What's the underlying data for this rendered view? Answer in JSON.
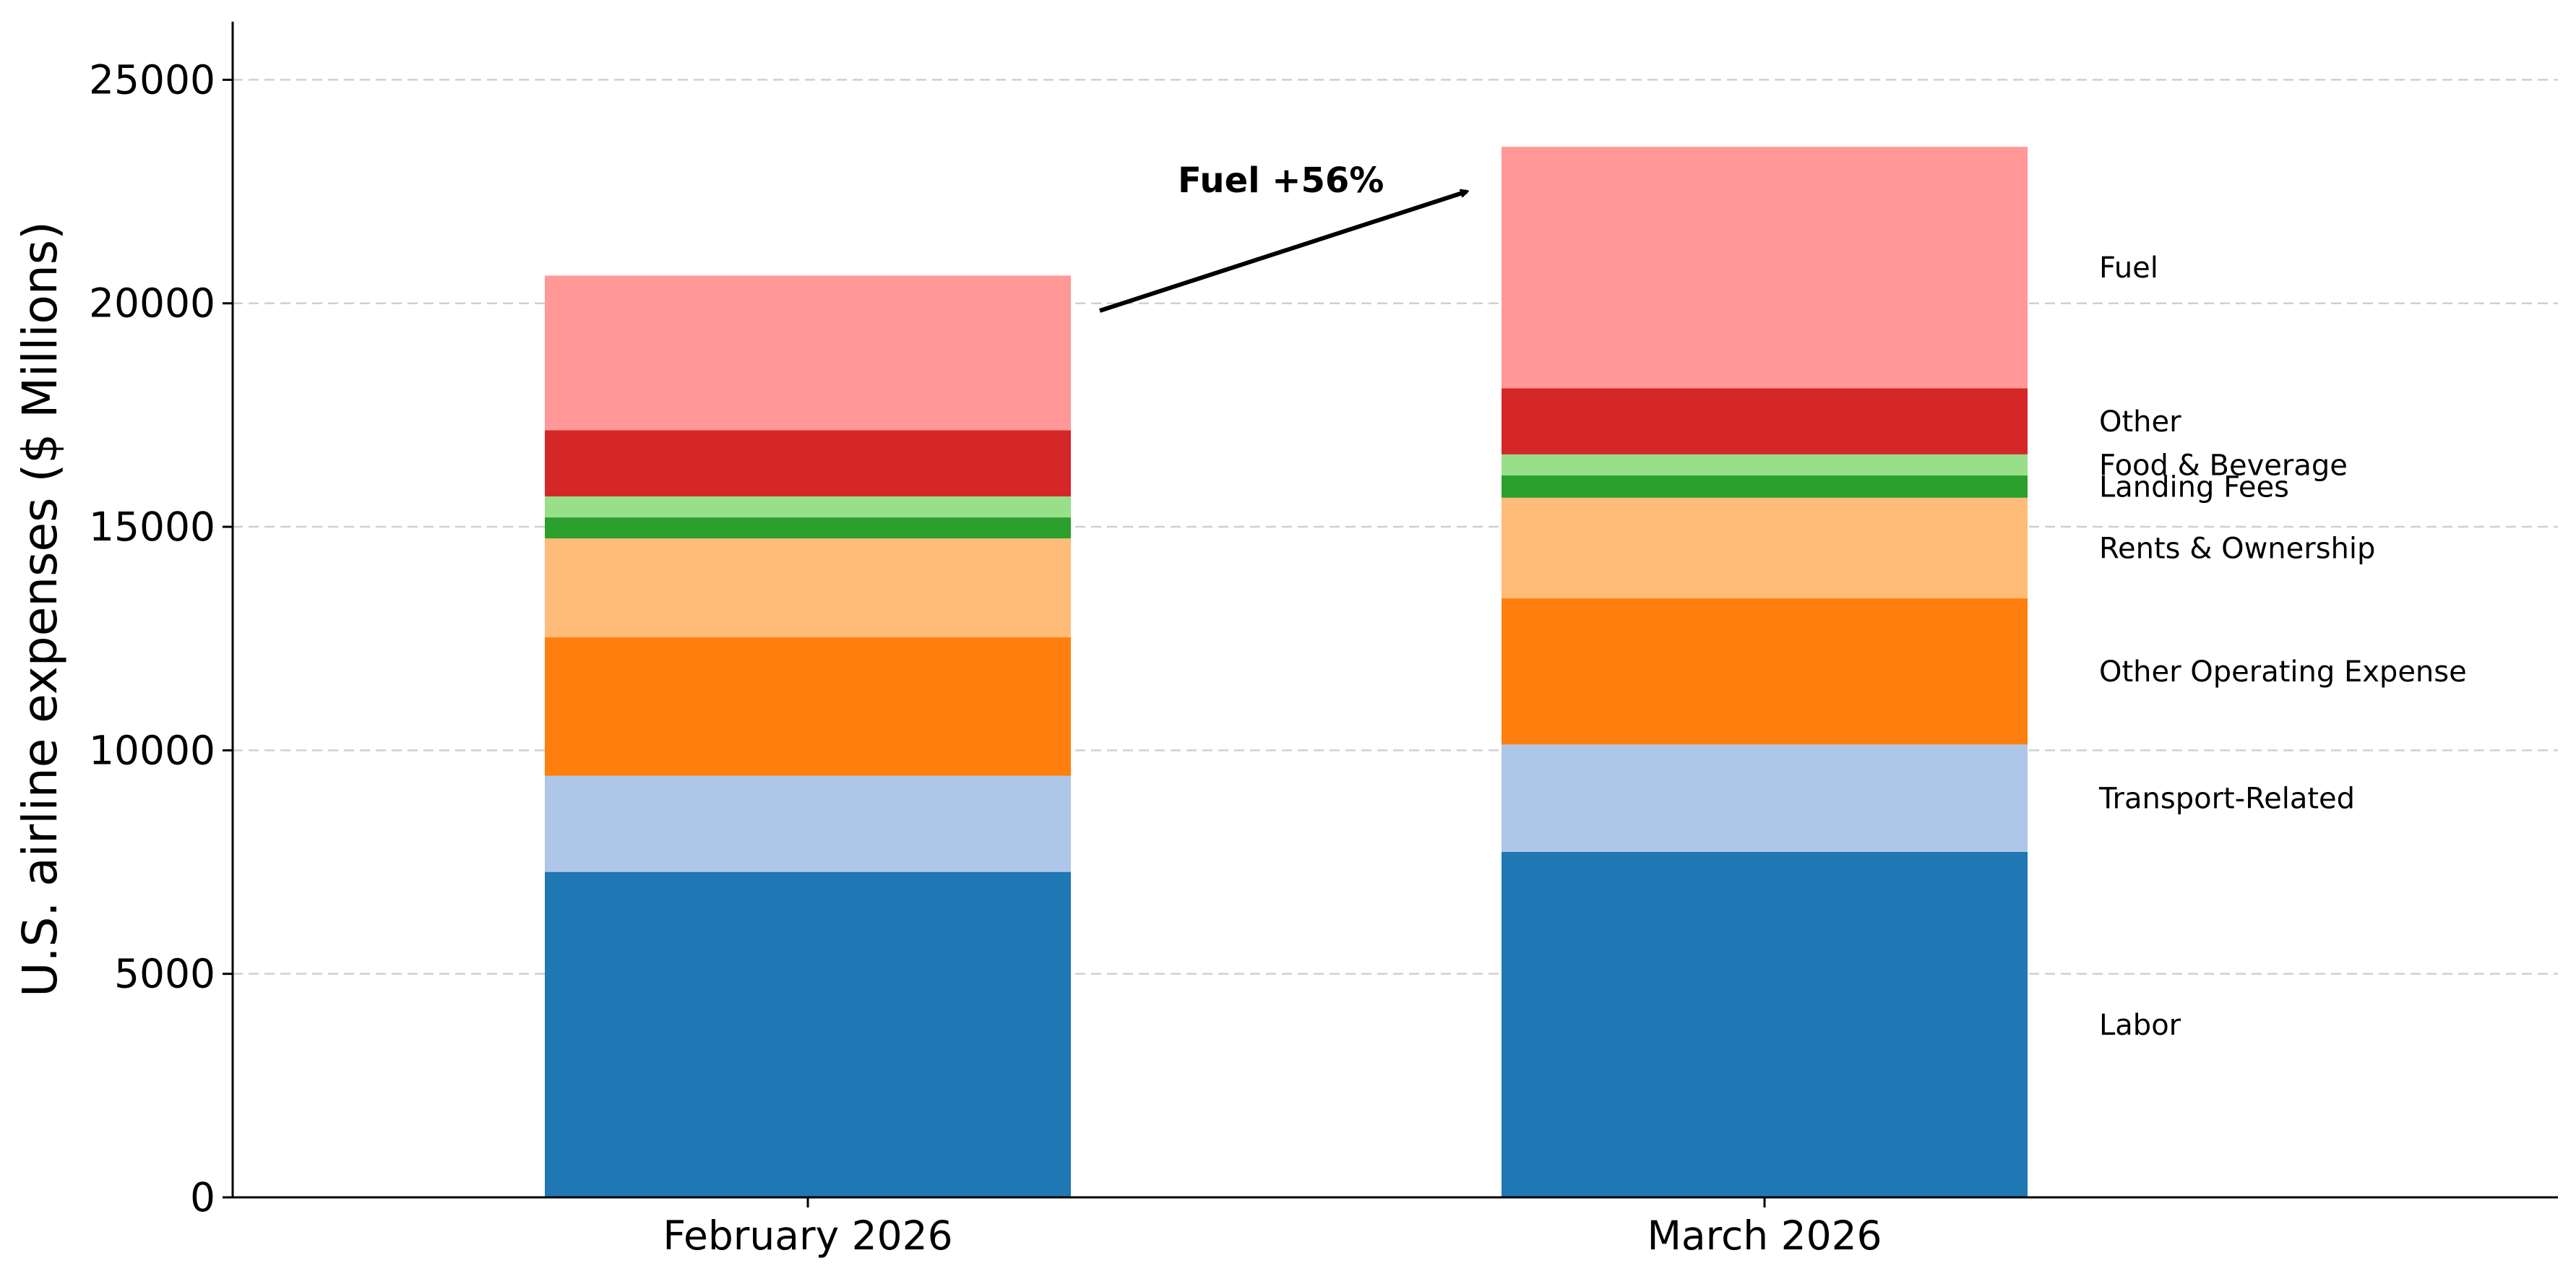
{
  "chart_data": {
    "type": "bar",
    "stacked": true,
    "title": "",
    "xlabel": "",
    "ylabel": "U.S. airline expenses ($ Millions)",
    "ylim": [
      0,
      26300
    ],
    "yticks": [
      0,
      5000,
      10000,
      15000,
      20000,
      25000
    ],
    "grid": "horizontal dashed",
    "categories": [
      "February 2026",
      "March 2026"
    ],
    "series": [
      {
        "name": "Labor",
        "color": "#1f77b4",
        "values": [
          7280,
          7730
        ]
      },
      {
        "name": "Transport-Related",
        "color": "#aec7e8",
        "values": [
          2150,
          2400
        ]
      },
      {
        "name": "Other Operating Expense",
        "color": "#ff7f0e",
        "values": [
          3100,
          3270
        ]
      },
      {
        "name": "Rents & Ownership",
        "color": "#ffbb78",
        "values": [
          2210,
          2250
        ]
      },
      {
        "name": "Landing Fees",
        "color": "#2ca02c",
        "values": [
          470,
          500
        ]
      },
      {
        "name": "Food & Beverage",
        "color": "#98df8a",
        "values": [
          470,
          470
        ]
      },
      {
        "name": "Other",
        "color": "#d62728",
        "values": [
          1480,
          1480
        ]
      },
      {
        "name": "Fuel",
        "color": "#ff9896",
        "values": [
          3460,
          5400
        ]
      }
    ],
    "annotation": {
      "text": "Fuel +56%"
    }
  }
}
